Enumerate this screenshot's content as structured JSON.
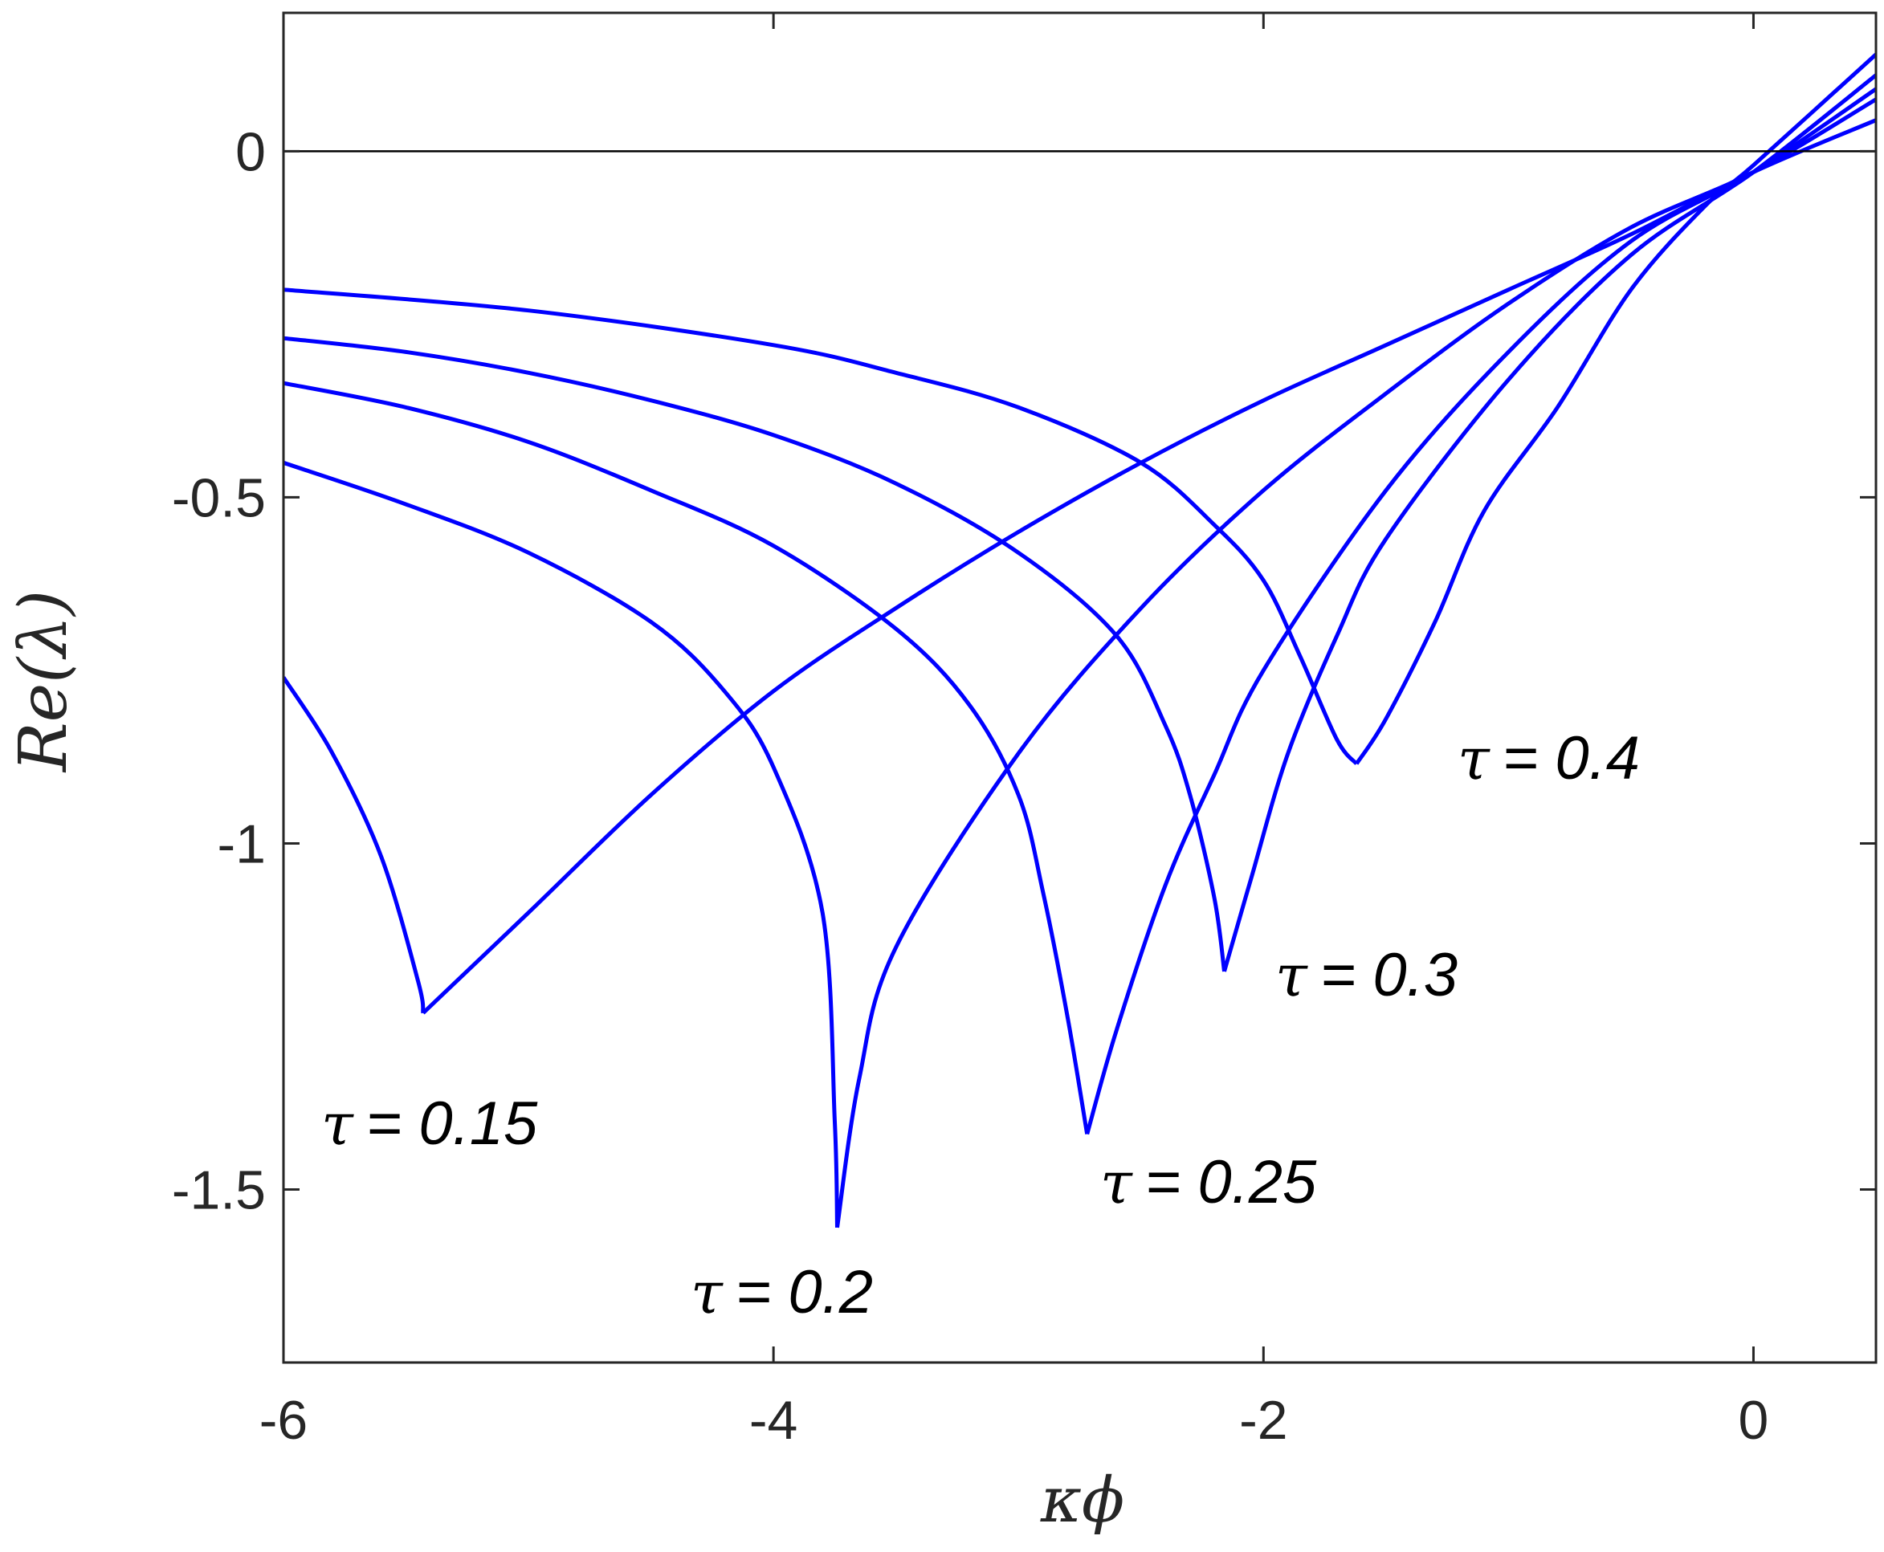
{
  "chart_data": {
    "type": "line",
    "title": "",
    "xlabel": "κϕ",
    "ylabel": "Re(λ)",
    "xlim": [
      -6,
      0.5
    ],
    "ylim": [
      -1.75,
      0.2
    ],
    "xticks": [
      -6,
      -4,
      -2,
      0
    ],
    "xtick_labels": [
      "-6",
      "-4",
      "-2",
      "0"
    ],
    "yticks": [
      0,
      -0.5,
      -1,
      -1.5
    ],
    "ytick_labels": [
      "0",
      "-0.5",
      "-1",
      "-1.5"
    ],
    "grid": false,
    "legend": "none",
    "reference_line": {
      "y": 0,
      "color": "#000000"
    },
    "series_color": "#0000ff",
    "series": [
      {
        "label": "τ = 0.15",
        "left_branch": [
          [
            -6,
            -0.76
          ],
          [
            -5.8,
            -0.87
          ],
          [
            -5.6,
            -1.02
          ],
          [
            -5.45,
            -1.2
          ],
          [
            -5.43,
            -1.245
          ]
        ],
        "right_branch": [
          [
            -5.43,
            -1.245
          ],
          [
            -5.0,
            -1.1
          ],
          [
            -4.5,
            -0.93
          ],
          [
            -4.0,
            -0.78
          ],
          [
            -3.5,
            -0.66
          ],
          [
            -3.0,
            -0.55
          ],
          [
            -2.5,
            -0.45
          ],
          [
            -2.0,
            -0.36
          ],
          [
            -1.5,
            -0.28
          ],
          [
            -1.0,
            -0.2
          ],
          [
            -0.5,
            -0.12
          ],
          [
            0,
            -0.03
          ],
          [
            0.5,
            0.045
          ]
        ]
      },
      {
        "label": "τ = 0.2",
        "left_branch": [
          [
            -6,
            -0.45
          ],
          [
            -5.5,
            -0.51
          ],
          [
            -5.0,
            -0.58
          ],
          [
            -4.5,
            -0.68
          ],
          [
            -4.2,
            -0.78
          ],
          [
            -4.0,
            -0.89
          ],
          [
            -3.8,
            -1.1
          ],
          [
            -3.75,
            -1.4
          ],
          [
            -3.74,
            -1.555
          ]
        ],
        "right_branch": [
          [
            -3.74,
            -1.555
          ],
          [
            -3.65,
            -1.34
          ],
          [
            -3.5,
            -1.15
          ],
          [
            -3.0,
            -0.87
          ],
          [
            -2.5,
            -0.66
          ],
          [
            -2.0,
            -0.49
          ],
          [
            -1.5,
            -0.35
          ],
          [
            -1.0,
            -0.22
          ],
          [
            -0.5,
            -0.11
          ],
          [
            0,
            -0.03
          ],
          [
            0.5,
            0.075
          ]
        ]
      },
      {
        "label": "τ = 0.25",
        "left_branch": [
          [
            -6,
            -0.335
          ],
          [
            -5.5,
            -0.37
          ],
          [
            -5.0,
            -0.42
          ],
          [
            -4.5,
            -0.49
          ],
          [
            -4.0,
            -0.57
          ],
          [
            -3.5,
            -0.69
          ],
          [
            -3.2,
            -0.8
          ],
          [
            -3.0,
            -0.93
          ],
          [
            -2.9,
            -1.07
          ],
          [
            -2.8,
            -1.25
          ],
          [
            -2.72,
            -1.42
          ]
        ],
        "right_branch": [
          [
            -2.72,
            -1.42
          ],
          [
            -2.6,
            -1.27
          ],
          [
            -2.4,
            -1.06
          ],
          [
            -2.2,
            -0.9
          ],
          [
            -2.0,
            -0.75
          ],
          [
            -1.5,
            -0.49
          ],
          [
            -1.0,
            -0.29
          ],
          [
            -0.5,
            -0.13
          ],
          [
            0,
            -0.03
          ],
          [
            0.5,
            0.09
          ]
        ]
      },
      {
        "label": "τ = 0.3",
        "left_branch": [
          [
            -6,
            -0.27
          ],
          [
            -5.5,
            -0.29
          ],
          [
            -5.0,
            -0.32
          ],
          [
            -4.5,
            -0.36
          ],
          [
            -4.0,
            -0.41
          ],
          [
            -3.5,
            -0.48
          ],
          [
            -3.0,
            -0.58
          ],
          [
            -2.6,
            -0.7
          ],
          [
            -2.4,
            -0.83
          ],
          [
            -2.3,
            -0.93
          ],
          [
            -2.2,
            -1.08
          ],
          [
            -2.16,
            -1.185
          ]
        ],
        "right_branch": [
          [
            -2.16,
            -1.185
          ],
          [
            -2.05,
            -1.05
          ],
          [
            -1.9,
            -0.87
          ],
          [
            -1.7,
            -0.7
          ],
          [
            -1.5,
            -0.56
          ],
          [
            -1.0,
            -0.33
          ],
          [
            -0.5,
            -0.15
          ],
          [
            0,
            -0.03
          ],
          [
            0.5,
            0.11
          ]
        ]
      },
      {
        "label": "τ = 0.4",
        "left_branch": [
          [
            -6,
            -0.2
          ],
          [
            -5.0,
            -0.23
          ],
          [
            -4.0,
            -0.28
          ],
          [
            -3.5,
            -0.32
          ],
          [
            -3.0,
            -0.37
          ],
          [
            -2.5,
            -0.45
          ],
          [
            -2.2,
            -0.54
          ],
          [
            -2.0,
            -0.62
          ],
          [
            -1.85,
            -0.73
          ],
          [
            -1.7,
            -0.85
          ],
          [
            -1.62,
            -0.885
          ]
        ],
        "right_branch": [
          [
            -1.62,
            -0.885
          ],
          [
            -1.5,
            -0.82
          ],
          [
            -1.3,
            -0.68
          ],
          [
            -1.1,
            -0.52
          ],
          [
            -0.8,
            -0.37
          ],
          [
            -0.5,
            -0.2
          ],
          [
            -0.2,
            -0.08
          ],
          [
            0,
            -0.02
          ],
          [
            0.5,
            0.14
          ]
        ]
      }
    ],
    "annotations": [
      {
        "tau": "τ",
        "value": "= 0.15"
      },
      {
        "tau": "τ",
        "value": "= 0.2"
      },
      {
        "tau": "τ",
        "value": "= 0.25"
      },
      {
        "tau": "τ",
        "value": "= 0.3"
      },
      {
        "tau": "τ",
        "value": "= 0.4"
      }
    ]
  }
}
